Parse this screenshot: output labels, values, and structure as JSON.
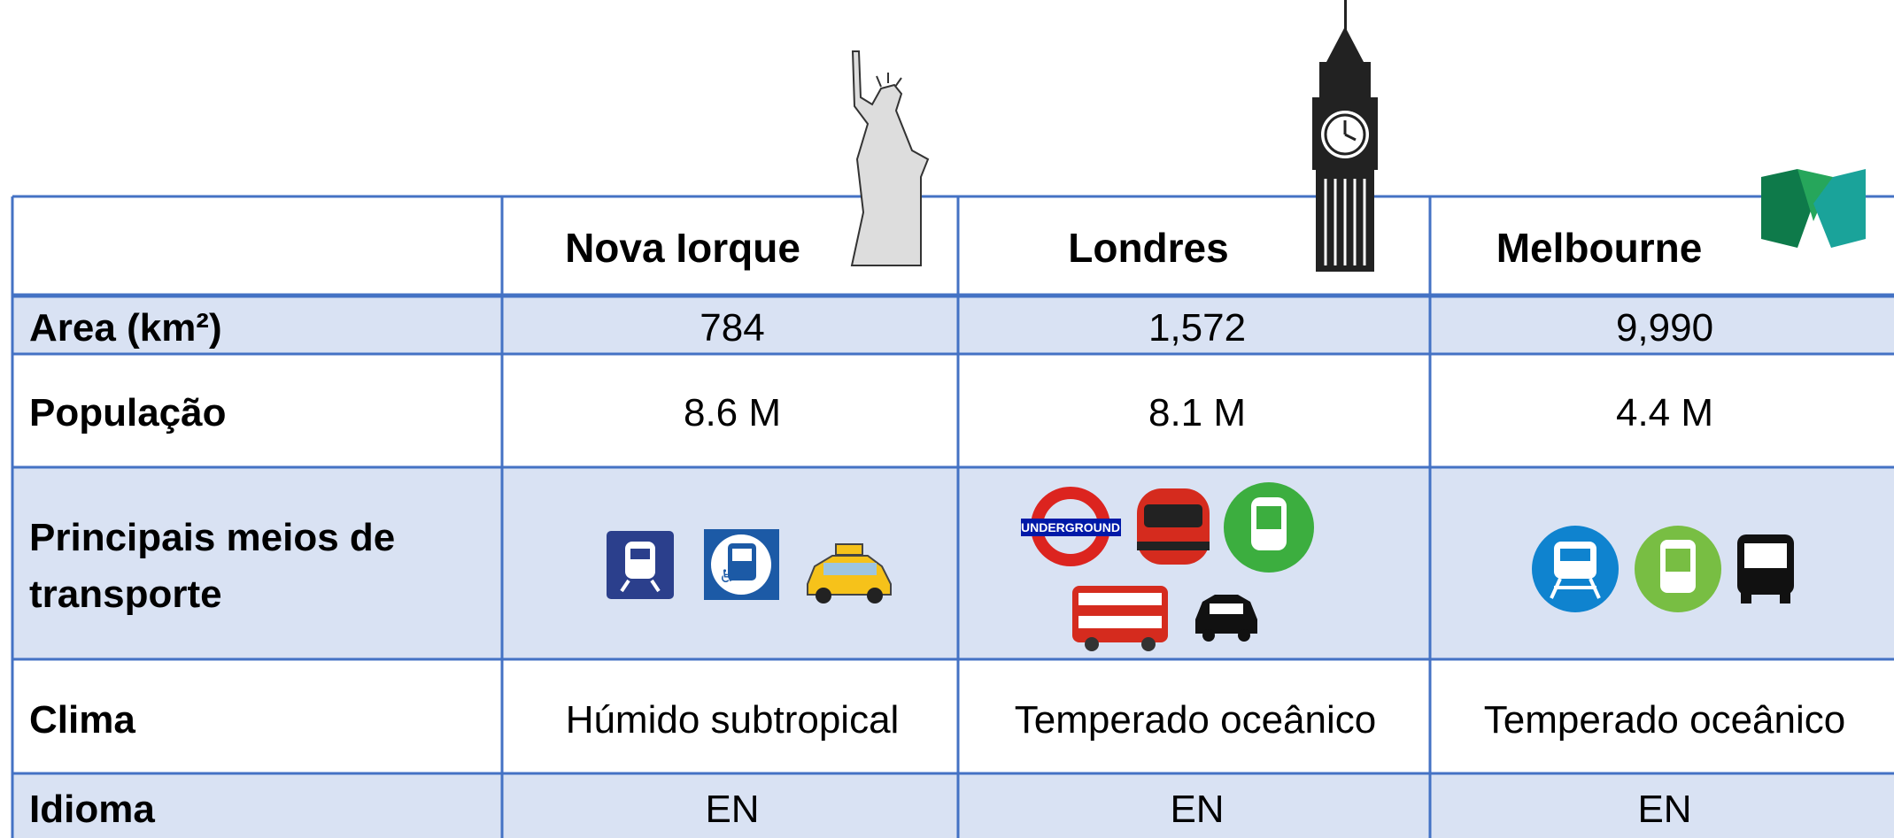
{
  "table": {
    "columns": [
      "Nova Iorque",
      "Londres",
      "Melbourne"
    ],
    "rows": [
      {
        "label": "Area (km²)",
        "values": [
          "784",
          "1,572",
          "9,990"
        ]
      },
      {
        "label": "População",
        "values": [
          "8.6 M",
          "8.1 M",
          "4.4 M"
        ]
      },
      {
        "label": [
          "Principais meios de",
          "transporte"
        ]
      },
      {
        "label": "Clima",
        "values": [
          "Húmido subtropical",
          "Temperado oceânico",
          "Temperado oceânico"
        ]
      },
      {
        "label": "Idioma",
        "values": [
          "EN",
          "EN",
          "EN"
        ]
      }
    ]
  }
}
